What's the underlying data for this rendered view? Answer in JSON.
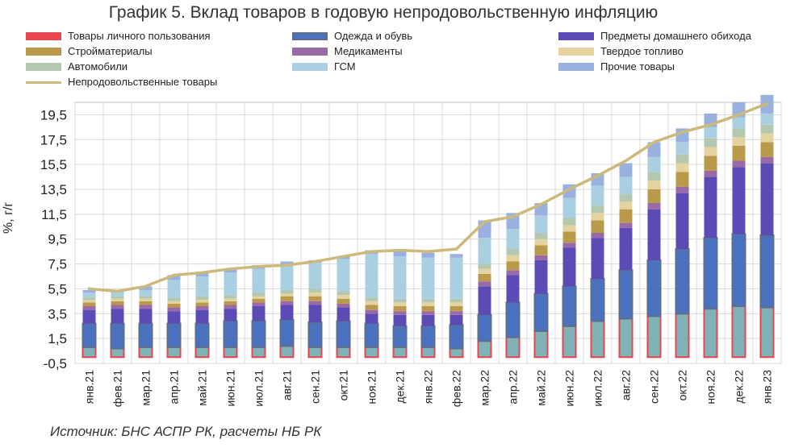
{
  "chart_data": {
    "type": "bar",
    "stacked": true,
    "title": "График 5. Вклад товаров в годовую непродовольственную инфляцию",
    "ylabel": "%, г/г",
    "xlabel": "",
    "ylim": [
      -0.5,
      20.5
    ],
    "yticks": [
      "-0,5",
      "1,5",
      "3,5",
      "5,5",
      "7,5",
      "9,5",
      "11,5",
      "13,5",
      "15,5",
      "17,5",
      "19,5"
    ],
    "ytick_values": [
      -0.5,
      1.5,
      3.5,
      5.5,
      7.5,
      9.5,
      11.5,
      13.5,
      15.5,
      17.5,
      19.5
    ],
    "grid": true,
    "legend_position": "top",
    "categories": [
      "янв.21",
      "фев.21",
      "мар.21",
      "апр.21",
      "май.21",
      "июн.21",
      "июл.21",
      "авг.21",
      "сен.21",
      "окт.21",
      "ноя.21",
      "дек.21",
      "янв.22",
      "фев.22",
      "мар.22",
      "апр.22",
      "май.22",
      "июн.22",
      "июл.22",
      "авг.22",
      "сен.22",
      "окт.22",
      "ноя.22",
      "дек.22",
      "янв.23"
    ],
    "series": [
      {
        "name": "Товары личного пользования",
        "color": "#7fb3b8",
        "border": "#e8454f",
        "values": [
          0.8,
          0.7,
          0.8,
          0.8,
          0.8,
          0.8,
          0.8,
          0.9,
          0.8,
          0.8,
          0.8,
          0.8,
          0.8,
          0.7,
          1.3,
          1.6,
          2.1,
          2.5,
          2.9,
          3.1,
          3.3,
          3.5,
          3.9,
          4.1,
          4.0
        ]
      },
      {
        "name": "Одежда и обувь",
        "color": "#4a72c0",
        "border": "#5f6e88",
        "values": [
          1.9,
          2.0,
          1.9,
          1.9,
          1.9,
          2.1,
          2.1,
          2.1,
          2.0,
          2.1,
          1.9,
          1.7,
          1.7,
          1.9,
          2.1,
          2.8,
          3.0,
          3.2,
          3.4,
          3.9,
          4.5,
          5.2,
          5.7,
          5.8,
          5.8
        ]
      },
      {
        "name": "Предметы домашнего обихода",
        "color": "#5a4cb4",
        "border": "#5a4cb4",
        "values": [
          1.1,
          1.2,
          1.2,
          1.0,
          1.1,
          1.0,
          1.2,
          1.2,
          1.4,
          1.1,
          0.8,
          0.9,
          0.9,
          0.8,
          2.3,
          2.2,
          2.7,
          3.1,
          3.3,
          3.4,
          4.1,
          4.5,
          4.9,
          5.4,
          5.8
        ]
      },
      {
        "name": "Медикаменты",
        "color": "#9a69a8",
        "border": "#9a69a8",
        "values": [
          0.3,
          0.3,
          0.3,
          0.3,
          0.3,
          0.3,
          0.3,
          0.3,
          0.3,
          0.3,
          0.3,
          0.3,
          0.3,
          0.3,
          0.4,
          0.4,
          0.4,
          0.4,
          0.4,
          0.4,
          0.5,
          0.5,
          0.5,
          0.5,
          0.5
        ]
      },
      {
        "name": "Стройматериалы",
        "color": "#b89a4a",
        "border": "#b89a4a",
        "values": [
          0.3,
          0.3,
          0.3,
          0.3,
          0.3,
          0.3,
          0.3,
          0.4,
          0.4,
          0.4,
          0.4,
          0.4,
          0.4,
          0.4,
          0.6,
          0.7,
          0.8,
          0.9,
          1.0,
          1.1,
          1.1,
          1.2,
          1.2,
          1.2,
          1.2
        ]
      },
      {
        "name": "Твердое топливо",
        "color": "#e4d3a0",
        "border": "#e4d3a0",
        "values": [
          0.2,
          0.2,
          0.2,
          0.2,
          0.2,
          0.2,
          0.2,
          0.2,
          0.3,
          0.3,
          0.3,
          0.3,
          0.3,
          0.3,
          0.4,
          0.5,
          0.5,
          0.5,
          0.6,
          0.6,
          0.7,
          0.7,
          0.7,
          0.7,
          0.7
        ]
      },
      {
        "name": "Автомобили",
        "color": "#b4c8b0",
        "border": "#b4c8b0",
        "values": [
          0.2,
          0.2,
          0.2,
          0.3,
          0.3,
          0.3,
          0.3,
          0.3,
          0.3,
          0.3,
          0.3,
          0.3,
          0.3,
          0.3,
          0.4,
          0.5,
          0.5,
          0.6,
          0.6,
          0.6,
          0.7,
          0.7,
          0.7,
          0.7,
          0.7
        ]
      },
      {
        "name": "ГСМ",
        "color": "#a9cfe0",
        "border": "#a9cfe0",
        "values": [
          0.4,
          0.3,
          0.5,
          1.4,
          1.6,
          1.8,
          1.9,
          2.0,
          2.1,
          2.6,
          3.5,
          3.4,
          3.3,
          3.3,
          2.1,
          1.6,
          1.4,
          1.6,
          1.6,
          1.4,
          1.2,
          1.0,
          0.9,
          0.9,
          0.9
        ]
      },
      {
        "name": "Прочие товары",
        "color": "#9ab0de",
        "border": "#9ab0de",
        "values": [
          0.2,
          0.2,
          0.3,
          0.4,
          0.3,
          0.3,
          0.3,
          0.3,
          0.2,
          0.2,
          0.3,
          0.4,
          0.4,
          0.3,
          1.4,
          1.3,
          1.0,
          1.1,
          1.0,
          1.1,
          1.2,
          1.1,
          1.1,
          1.2,
          1.5
        ]
      },
      {
        "name": "Непродовольственные товары",
        "type": "line",
        "color": "#cdb97a",
        "values": [
          5.5,
          5.3,
          5.7,
          6.6,
          6.8,
          7.1,
          7.3,
          7.4,
          7.7,
          8.1,
          8.5,
          8.6,
          8.5,
          8.7,
          10.9,
          11.3,
          12.3,
          13.5,
          14.6,
          15.8,
          17.3,
          18.1,
          18.7,
          19.5,
          20.4
        ]
      }
    ],
    "source": "Источник: БНС АСПР РК, расчеты НБ РК"
  },
  "legend": [
    {
      "label": "Товары личного пользования",
      "color": "#e8454f",
      "border": "#e8454f",
      "kind": "box"
    },
    {
      "label": "Одежда и обувь",
      "color": "#4a72c0",
      "border": "#5f6e88",
      "kind": "box"
    },
    {
      "label": "Предметы домашнего обихода",
      "color": "#5a4cb4",
      "border": "#5a4cb4",
      "kind": "box"
    },
    {
      "label": "Стройматериалы",
      "color": "#b89a4a",
      "border": "#b89a4a",
      "kind": "box"
    },
    {
      "label": "Медикаменты",
      "color": "#9a69a8",
      "border": "#9a69a8",
      "kind": "box"
    },
    {
      "label": "Твердое топливо",
      "color": "#e4d3a0",
      "border": "#e4d3a0",
      "kind": "box"
    },
    {
      "label": "Автомобили",
      "color": "#b4c8b0",
      "border": "#b4c8b0",
      "kind": "box"
    },
    {
      "label": "ГСМ",
      "color": "#a9cfe0",
      "border": "#a9cfe0",
      "kind": "box"
    },
    {
      "label": "Прочие товары",
      "color": "#9ab0de",
      "border": "#9ab0de",
      "kind": "box"
    },
    {
      "label": "Непродовольственные товары",
      "color": "#cdb97a",
      "border": "#cdb97a",
      "kind": "line"
    }
  ]
}
